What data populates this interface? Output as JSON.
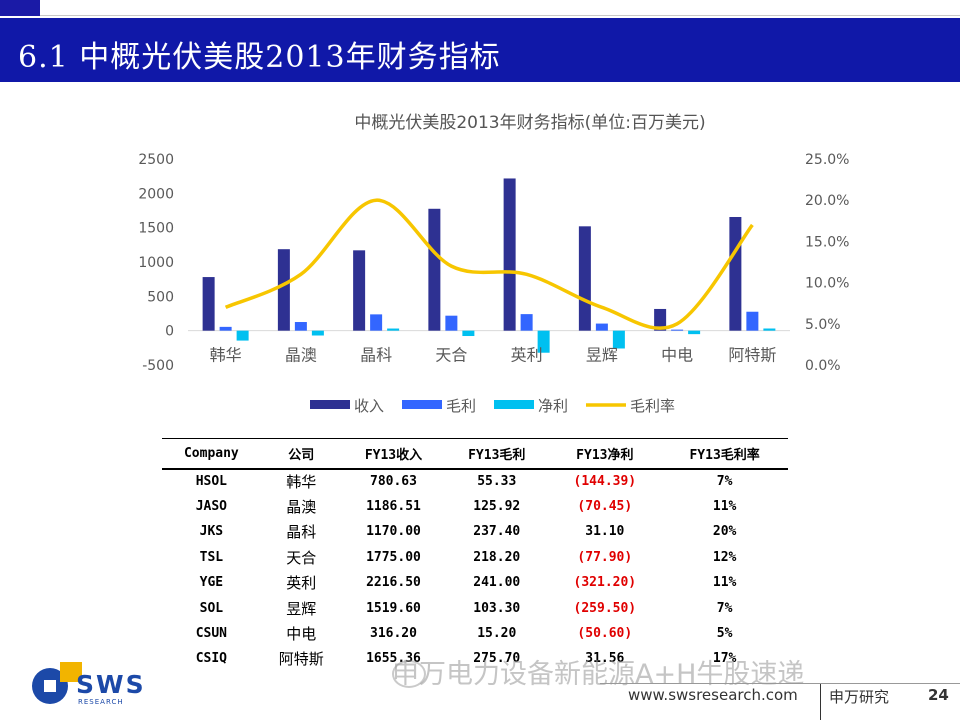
{
  "slide": {
    "title": "6.1 中概光伏美股2013年财务指标",
    "page_number": "24"
  },
  "chart_data": {
    "type": "bar",
    "title": "中概光伏美股2013年财务指标(单位:百万美元)",
    "categories": [
      "韩华",
      "晶澳",
      "晶科",
      "天合",
      "英利",
      "昱辉",
      "中电",
      "阿特斯"
    ],
    "series": [
      {
        "name": "收入",
        "type": "bar",
        "axis": "left",
        "color": "#2e3192",
        "values": [
          780.63,
          1186.51,
          1170.0,
          1775.0,
          2216.5,
          1519.6,
          316.2,
          1655.36
        ]
      },
      {
        "name": "毛利",
        "type": "bar",
        "axis": "left",
        "color": "#3366ff",
        "values": [
          55.33,
          125.92,
          237.4,
          218.2,
          241.0,
          103.3,
          15.2,
          275.7
        ]
      },
      {
        "name": "净利",
        "type": "bar",
        "axis": "left",
        "color": "#00c0f0",
        "values": [
          -144.39,
          -70.45,
          31.1,
          -77.9,
          -321.2,
          -259.5,
          -50.6,
          31.56
        ]
      },
      {
        "name": "毛利率",
        "type": "line",
        "axis": "right",
        "color": "#f7c600",
        "values": [
          0.07,
          0.11,
          0.2,
          0.12,
          0.11,
          0.07,
          0.05,
          0.17
        ]
      }
    ],
    "yticks_left": [
      "2500",
      "2000",
      "1500",
      "1000",
      "500",
      "0",
      "-500"
    ],
    "ylim_left": [
      -500,
      2500
    ],
    "yticks_right": [
      "25.0%",
      "20.0%",
      "15.0%",
      "10.0%",
      "5.0%",
      "0.0%"
    ],
    "ylim_right": [
      0,
      0.25
    ],
    "legend_position": "bottom",
    "grid": false
  },
  "table": {
    "headers": [
      "Company",
      "公司",
      "FY13收入",
      "FY13毛利",
      "FY13净利",
      "FY13毛利率"
    ],
    "rows": [
      {
        "ticker": "HSOL",
        "name": "韩华",
        "revenue": "780.63",
        "gross": "55.33",
        "net": "(144.39)",
        "margin": "7%",
        "net_negative": true
      },
      {
        "ticker": "JASO",
        "name": "晶澳",
        "revenue": "1186.51",
        "gross": "125.92",
        "net": "(70.45)",
        "margin": "11%",
        "net_negative": true
      },
      {
        "ticker": "JKS",
        "name": "晶科",
        "revenue": "1170.00",
        "gross": "237.40",
        "net": "31.10",
        "margin": "20%",
        "net_negative": false
      },
      {
        "ticker": "TSL",
        "name": "天合",
        "revenue": "1775.00",
        "gross": "218.20",
        "net": "(77.90)",
        "margin": "12%",
        "net_negative": true
      },
      {
        "ticker": "YGE",
        "name": "英利",
        "revenue": "2216.50",
        "gross": "241.00",
        "net": "(321.20)",
        "margin": "11%",
        "net_negative": true
      },
      {
        "ticker": "SOL",
        "name": "昱辉",
        "revenue": "1519.60",
        "gross": "103.30",
        "net": "(259.50)",
        "margin": "7%",
        "net_negative": true
      },
      {
        "ticker": "CSUN",
        "name": "中电",
        "revenue": "316.20",
        "gross": "15.20",
        "net": "(50.60)",
        "margin": "5%",
        "net_negative": true
      },
      {
        "ticker": "CSIQ",
        "name": "阿特斯",
        "revenue": "1655.36",
        "gross": "275.70",
        "net": "31.56",
        "margin": "17%",
        "net_negative": false
      }
    ]
  },
  "watermark": "申万电力设备新能源A+H牛股速递",
  "logo": {
    "text": "SWS",
    "sub": "RESEARCH",
    "square_color": "#f2b400",
    "circle_color": "#1c49a8"
  },
  "footer": {
    "url": "www.swsresearch.com",
    "brand": "申万研究"
  },
  "colors": {
    "header_bar": "#1018a8",
    "negative": "#e00000"
  }
}
